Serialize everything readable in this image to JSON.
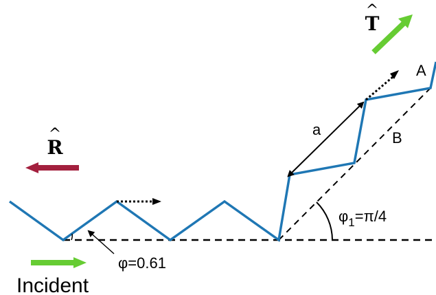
{
  "colors": {
    "structure": "#1f77b4",
    "transmitted_arrow": "#66cc33",
    "reflected_arrow": "#a3203e",
    "incident_arrow": "#66cc33",
    "lines": "#000000"
  },
  "labels": {
    "transmitted_hat": "^",
    "transmitted_letter": "T",
    "reflected_hat": "^",
    "reflected_letter": "R",
    "incident": "Incident",
    "point_a": "A",
    "point_b": "B",
    "length_a": "a",
    "angle_phi": "φ=0.61",
    "angle_phi1_symbol": "φ",
    "angle_phi1_sub": "1",
    "angle_phi1_value": "=π/4"
  },
  "icons": {
    "transmitted": "green-arrow-icon",
    "reflected": "red-arrow-icon",
    "incident": "green-arrow-icon",
    "propagation": "dotted-arrow-icon"
  }
}
